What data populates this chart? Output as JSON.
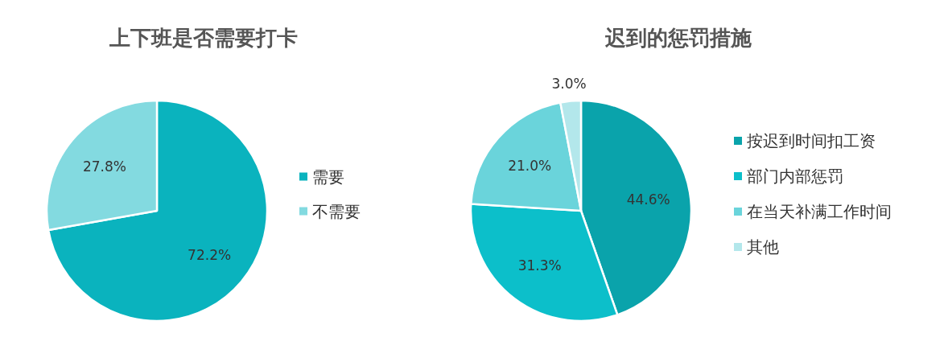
{
  "chart_data": [
    {
      "type": "pie",
      "title": "上下班是否需要打卡",
      "categories": [
        "需要",
        "不需要"
      ],
      "values": [
        72.2,
        27.8
      ],
      "colors": [
        "#0ab3be",
        "#83dae0"
      ],
      "value_labels": [
        "72.2%",
        "27.8%"
      ],
      "legend": "right"
    },
    {
      "type": "pie",
      "title": "迟到的惩罚措施",
      "categories": [
        "按迟到时间扣工资",
        "部门内部惩罚",
        "在当天补满工作时间",
        "其他"
      ],
      "values": [
        44.6,
        31.3,
        21.0,
        3.0
      ],
      "colors": [
        "#0aa3ab",
        "#0cbfca",
        "#6ad4db",
        "#b3e7eb"
      ],
      "value_labels": [
        "44.6%",
        "31.3%",
        "21.0%",
        "3.0%"
      ],
      "legend": "right"
    }
  ]
}
